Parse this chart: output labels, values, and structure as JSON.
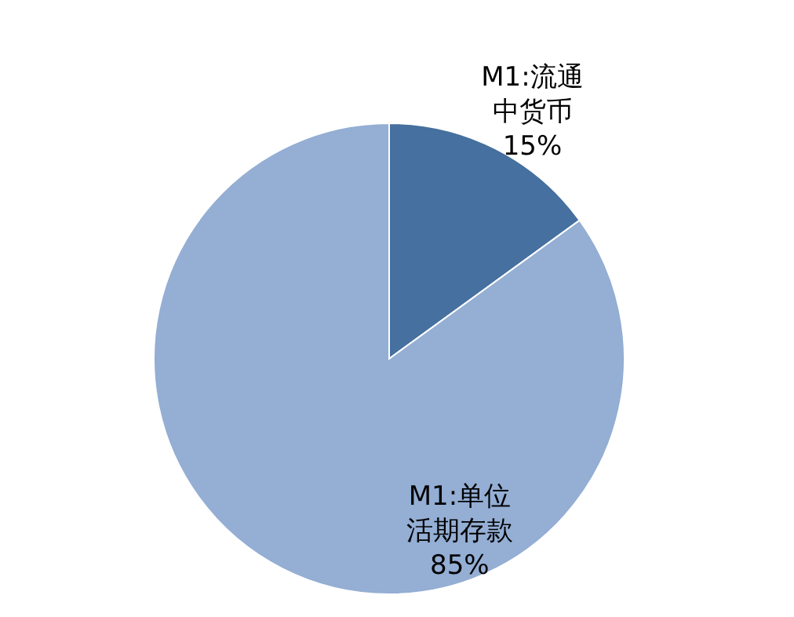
{
  "chart_data": {
    "type": "pie",
    "categories": [
      "M1:流通中货币",
      "M1:单位活期存款"
    ],
    "values": [
      15,
      85
    ],
    "value_labels": [
      "15%",
      "85%"
    ],
    "colors": [
      "#45709f",
      "#94aed4"
    ],
    "legend": false
  }
}
